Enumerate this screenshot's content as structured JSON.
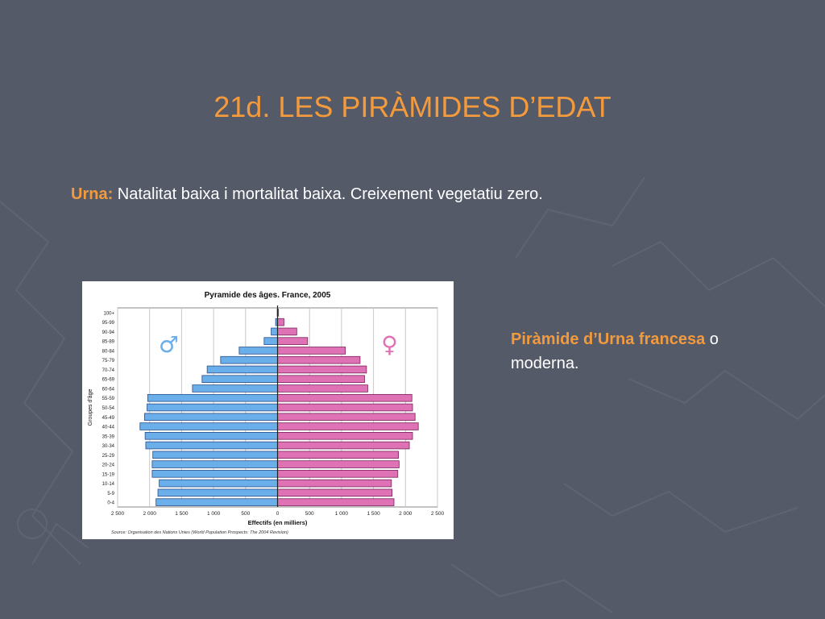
{
  "slide": {
    "title": "21d. LES PIRÀMIDES D’EDAT",
    "intro_lead": "Urna:",
    "intro_text": "Natalitat baixa i mortalitat baixa. Creixement vegetatiu zero.",
    "note_lead": "Piràmide d’Urna francesa",
    "note_text": " o moderna."
  },
  "colors": {
    "background": "#555a69",
    "accent": "#f39a3c",
    "male_bar": "#6aaeea",
    "female_bar": "#df72b4"
  },
  "chart_data": {
    "type": "bar",
    "orientation": "horizontal-population-pyramid",
    "title": "Pyramide des âges. France, 2005",
    "xlabel": "Effectifs (en milliers)",
    "ylabel": "Groupes d'âge",
    "source": "Source: Organisation des Nations Unies (World Population Prospects: The 2004 Revision)",
    "xlim": [
      -2500,
      2500
    ],
    "xticks": [
      -2500,
      -2000,
      -1500,
      -1000,
      -500,
      0,
      500,
      1000,
      1500,
      2000,
      2500
    ],
    "xtick_labels": [
      "2 500",
      "2 000",
      "1 500",
      "1 000",
      "500",
      "0",
      "500",
      "1 000",
      "1 500",
      "2 000",
      "2 500"
    ],
    "male_symbol": "♂",
    "female_symbol": "♀",
    "categories": [
      "100+",
      "95-99",
      "90-94",
      "85-89",
      "80-84",
      "75-79",
      "70-74",
      "65-69",
      "60-64",
      "55-59",
      "50-54",
      "45-49",
      "40-44",
      "35-39",
      "30-34",
      "25-29",
      "20-24",
      "15-19",
      "10-14",
      "5-9",
      "0-4"
    ],
    "series": [
      {
        "name": "♂",
        "values": [
          5,
          30,
          100,
          210,
          600,
          890,
          1100,
          1180,
          1330,
          2030,
          2040,
          2080,
          2150,
          2070,
          2060,
          1950,
          1960,
          1960,
          1850,
          1870,
          1900
        ]
      },
      {
        "name": "♀",
        "values": [
          15,
          100,
          300,
          470,
          1060,
          1290,
          1390,
          1360,
          1410,
          2100,
          2110,
          2150,
          2200,
          2110,
          2060,
          1890,
          1900,
          1880,
          1780,
          1790,
          1820
        ]
      }
    ],
    "grid": true
  }
}
